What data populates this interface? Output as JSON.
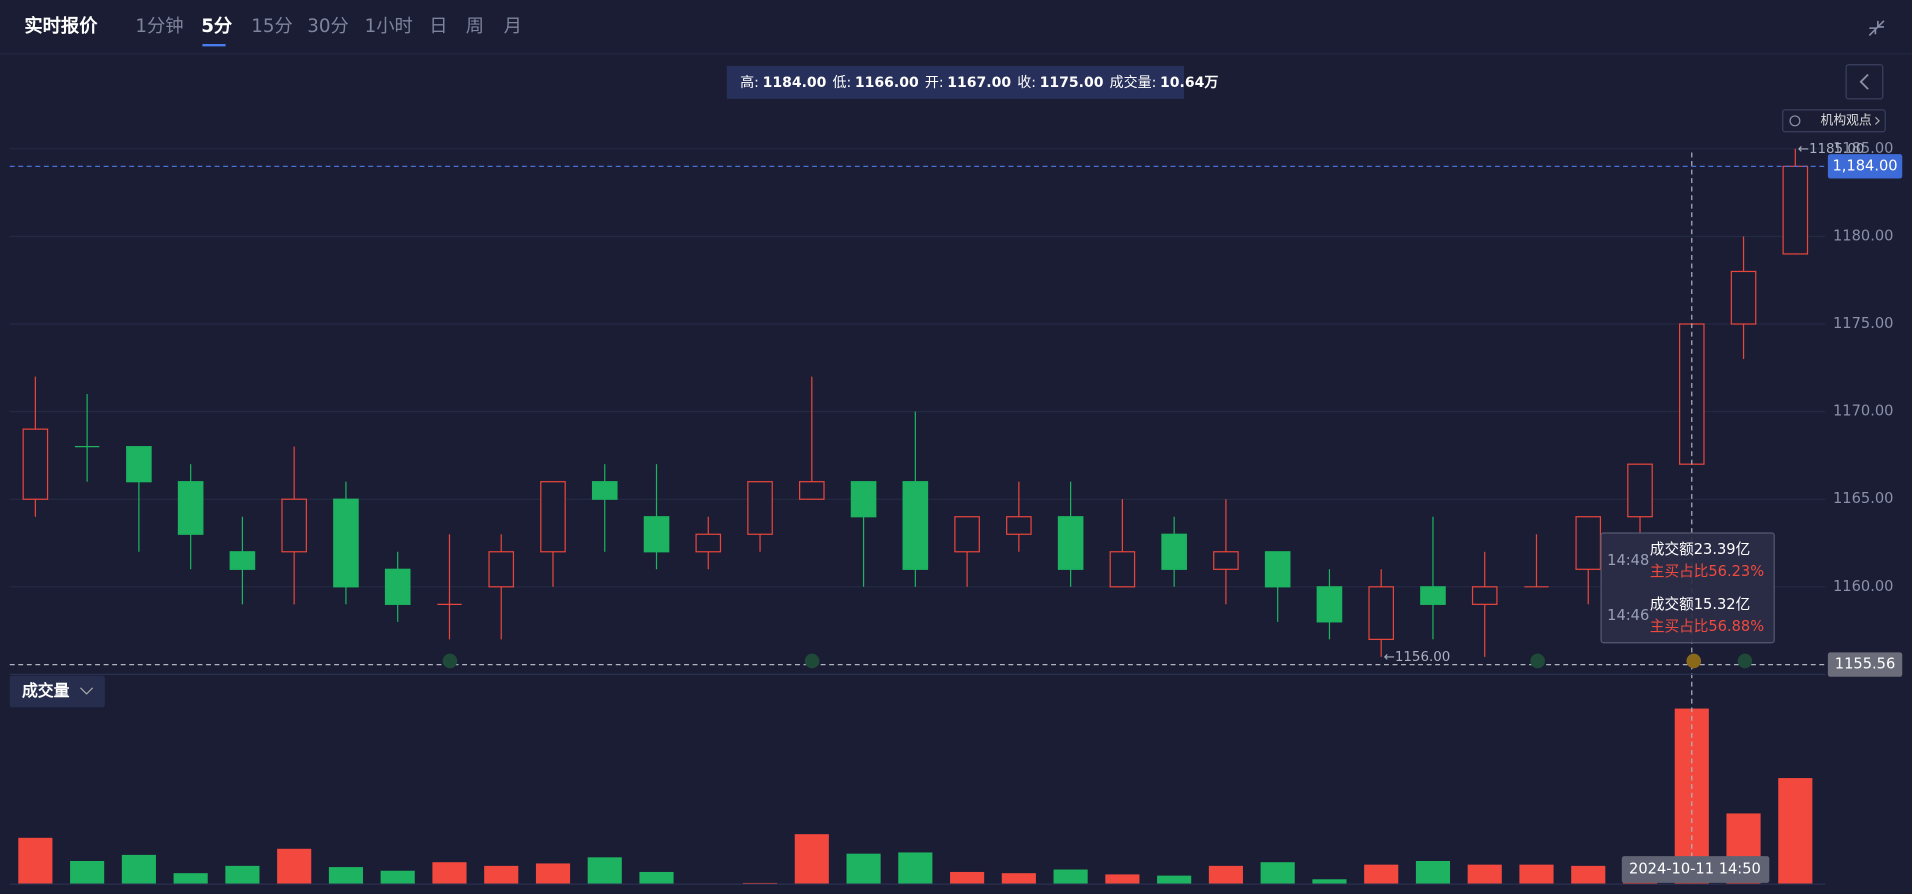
{
  "tabs": [
    "实时报价",
    "1分钟",
    "5分",
    "15分",
    "30分",
    "1小时",
    "日",
    "周",
    "月"
  ],
  "info": [
    {
      "label": "高:",
      "value": "1184.00"
    },
    {
      "label": "低:",
      "value": "1166.00"
    },
    {
      "label": "开:",
      "value": "1167.00"
    },
    {
      "label": "收:",
      "value": "1175.00"
    },
    {
      "label": "成交量:",
      "value": "10.64万"
    }
  ],
  "opinion_button": "机构观点",
  "volume_button": "成交量",
  "tooltip": [
    {
      "time": "14:48",
      "amount": "成交额23.39亿",
      "ratio": "主买占比56.23%"
    },
    {
      "time": "14:46",
      "amount": "成交额15.32亿",
      "ratio": "主买占比56.88%"
    }
  ],
  "crosshair_time": "2024-10-11 14:50",
  "chart_data": {
    "type": "candlestick",
    "open": [
      1165,
      1168,
      1168,
      1166,
      1162,
      1162,
      1165,
      1161,
      1159,
      1160,
      1162,
      1166,
      1164,
      1162,
      1163,
      1165,
      1166,
      1166,
      1162,
      1163,
      1164,
      1160,
      1163,
      1161,
      1162,
      1160,
      1157,
      1160,
      1159,
      1160,
      1161,
      1164,
      1167,
      1175,
      1179
    ],
    "high": [
      1172,
      1171,
      1168,
      1167,
      1164,
      1168,
      1166,
      1162,
      1163,
      1163,
      1166,
      1167,
      1167,
      1164,
      1166,
      1172,
      1166,
      1170,
      1164,
      1166,
      1166,
      1165,
      1164,
      1165,
      1162,
      1161,
      1161,
      1164,
      1162,
      1163,
      1164,
      1167,
      1175,
      1180,
      1185
    ],
    "low": [
      1164,
      1166,
      1162,
      1161,
      1159,
      1159,
      1159,
      1158,
      1157,
      1157,
      1160,
      1162,
      1161,
      1161,
      1162,
      1165,
      1160,
      1160,
      1160,
      1162,
      1160,
      1160,
      1160,
      1159,
      1158,
      1157,
      1156,
      1157,
      1156,
      1160,
      1159,
      1163,
      1167,
      1173,
      1179
    ],
    "close": [
      1169,
      1168,
      1166,
      1163,
      1161,
      1165,
      1160,
      1159,
      1159,
      1162,
      1166,
      1165,
      1162,
      1163,
      1166,
      1166,
      1164,
      1161,
      1164,
      1164,
      1161,
      1162,
      1161,
      1162,
      1160,
      1158,
      1160,
      1159,
      1160,
      1160,
      1164,
      1167,
      1175,
      1178,
      1184
    ],
    "volume": [
      38,
      19,
      24,
      9,
      15,
      29,
      14,
      11,
      18,
      15,
      17,
      22,
      10,
      0,
      1,
      41,
      25,
      26,
      10,
      9,
      12,
      8,
      7,
      15,
      18,
      4,
      16,
      19,
      16,
      16,
      15,
      12,
      144,
      58,
      87
    ],
    "colors": [
      "#e8463c",
      "#1db360",
      "#1db360",
      "#1db360",
      "#1db360",
      "#e8463c",
      "#1db360",
      "#1db360",
      "#e8463c",
      "#e8463c",
      "#e8463c",
      "#1db360",
      "#1db360",
      "#e8463c",
      "#e8463c",
      "#e8463c",
      "#1db360",
      "#1db360",
      "#e8463c",
      "#e8463c",
      "#1db360",
      "#e8463c",
      "#1db360",
      "#e8463c",
      "#1db360",
      "#1db360",
      "#e8463c",
      "#1db360",
      "#e8463c",
      "#e8463c",
      "#e8463c",
      "#e8463c",
      "#e8463c",
      "#e8463c",
      "#e8463c"
    ],
    "ylim": [
      1155,
      1186
    ],
    "yticks": [
      {
        "value": 1185,
        "label": "1185.00"
      },
      {
        "value": 1180,
        "label": "1180.00"
      },
      {
        "value": 1175,
        "label": "1175.00"
      },
      {
        "value": 1170,
        "label": "1170.00"
      },
      {
        "value": 1165,
        "label": "1165.00"
      },
      {
        "value": 1160,
        "label": "1160.00"
      }
    ],
    "last_price": {
      "value": 1184,
      "label": "1,184.00"
    },
    "crosshair_price": {
      "value": 1155.56,
      "label": "1155.56"
    },
    "high_marker": {
      "value": 1185,
      "label": "←1185.00"
    },
    "low_marker": {
      "value": 1156,
      "label": "←1156.00"
    },
    "grid": true
  }
}
